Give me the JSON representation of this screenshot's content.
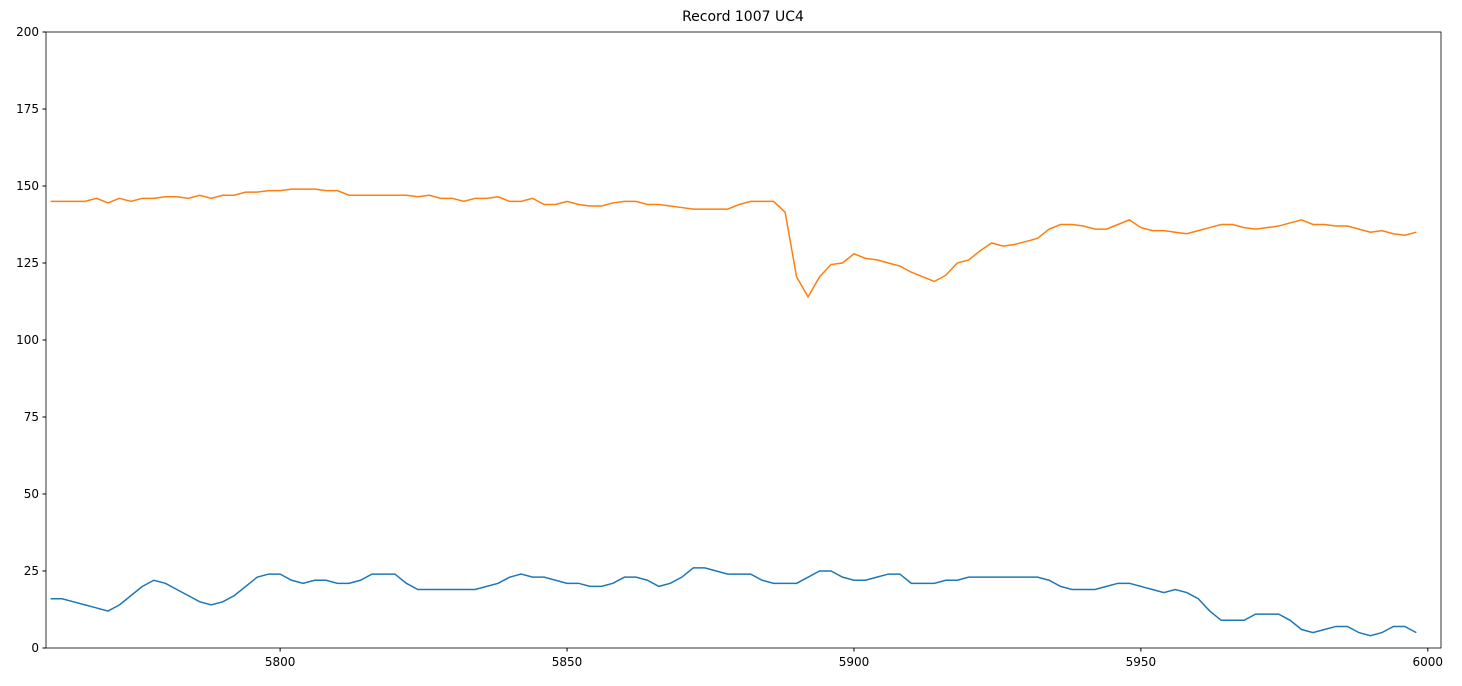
{
  "chart_data": {
    "type": "line",
    "title": "Record 1007 UC4",
    "x": [
      5760,
      5762,
      5764,
      5766,
      5768,
      5770,
      5772,
      5774,
      5776,
      5778,
      5780,
      5782,
      5784,
      5786,
      5788,
      5790,
      5792,
      5794,
      5796,
      5798,
      5800,
      5802,
      5804,
      5806,
      5808,
      5810,
      5812,
      5814,
      5816,
      5818,
      5820,
      5822,
      5824,
      5826,
      5828,
      5830,
      5832,
      5834,
      5836,
      5838,
      5840,
      5842,
      5844,
      5846,
      5848,
      5850,
      5852,
      5854,
      5856,
      5858,
      5860,
      5862,
      5864,
      5866,
      5868,
      5870,
      5872,
      5874,
      5876,
      5878,
      5880,
      5882,
      5884,
      5886,
      5888,
      5890,
      5892,
      5894,
      5896,
      5898,
      5900,
      5902,
      5904,
      5906,
      5908,
      5910,
      5912,
      5914,
      5916,
      5918,
      5920,
      5922,
      5924,
      5926,
      5928,
      5930,
      5932,
      5934,
      5936,
      5938,
      5940,
      5942,
      5944,
      5946,
      5948,
      5950,
      5952,
      5954,
      5956,
      5958,
      5960,
      5962,
      5964,
      5966,
      5968,
      5970,
      5972,
      5974,
      5976,
      5978,
      5980,
      5982,
      5984,
      5986,
      5988,
      5990,
      5992,
      5994,
      5996,
      5998
    ],
    "series": [
      {
        "color": "#1f77b4",
        "values": [
          16,
          16,
          15,
          14,
          13,
          12,
          14,
          17,
          20,
          22,
          21,
          19,
          17,
          15,
          14,
          15,
          17,
          20,
          23,
          24,
          24,
          22,
          21,
          22,
          22,
          21,
          21,
          22,
          24,
          24,
          24,
          21,
          19,
          19,
          19,
          19,
          19,
          19,
          20,
          21,
          23,
          24,
          23,
          23,
          22,
          21,
          21,
          20,
          20,
          21,
          23,
          23,
          22,
          20,
          21,
          23,
          26,
          26,
          25,
          24,
          24,
          24,
          22,
          21,
          21,
          21,
          23,
          25,
          25,
          23,
          22,
          22,
          23,
          24,
          24,
          21,
          21,
          21,
          22,
          22,
          23,
          23,
          23,
          23,
          23,
          23,
          23,
          22,
          20,
          19,
          19,
          19,
          20,
          21,
          21,
          20,
          19,
          18,
          19,
          18,
          16,
          12,
          9,
          9,
          9,
          11,
          11,
          11,
          9,
          6,
          5,
          6,
          7,
          7,
          5,
          4,
          5,
          7,
          7,
          5
        ]
      },
      {
        "color": "#ff7f0e",
        "values": [
          145,
          145,
          145,
          145,
          146,
          144.5,
          146,
          145,
          146,
          146,
          146.5,
          146.5,
          146,
          147,
          146,
          147,
          147,
          148,
          148,
          148.5,
          148.5,
          149,
          149,
          149,
          148.5,
          148.5,
          147,
          147,
          147,
          147,
          147,
          147,
          146.5,
          147,
          146,
          146,
          145,
          146,
          146,
          146.5,
          145,
          145,
          146,
          144,
          144,
          145,
          144,
          143.5,
          143.5,
          144.5,
          145,
          145,
          144,
          144,
          143.5,
          143,
          142.5,
          142.5,
          142.5,
          142.5,
          144,
          145,
          145,
          145,
          141.5,
          120.5,
          114,
          120.5,
          124.5,
          125,
          128,
          126.5,
          126,
          125,
          124,
          122,
          120.5,
          119,
          121,
          125,
          126,
          129,
          131.5,
          130.5,
          131,
          132,
          133,
          136,
          137.5,
          137.5,
          137,
          136,
          136,
          137.5,
          139,
          136.5,
          135.5,
          135.5,
          135,
          134.5,
          135.5,
          136.5,
          137.5,
          137.5,
          136.5,
          136,
          136.5,
          137,
          138,
          139,
          137.5,
          137.5,
          137,
          137,
          136,
          135,
          135.5,
          134.5,
          134,
          135
        ]
      }
    ],
    "xlim": [
      5759.2,
      6002.3
    ],
    "xticks": [
      5800,
      5850,
      5900,
      5950,
      6000
    ],
    "ylim": [
      0,
      200
    ],
    "yticks": [
      0,
      25,
      50,
      75,
      100,
      125,
      150,
      175,
      200
    ]
  }
}
